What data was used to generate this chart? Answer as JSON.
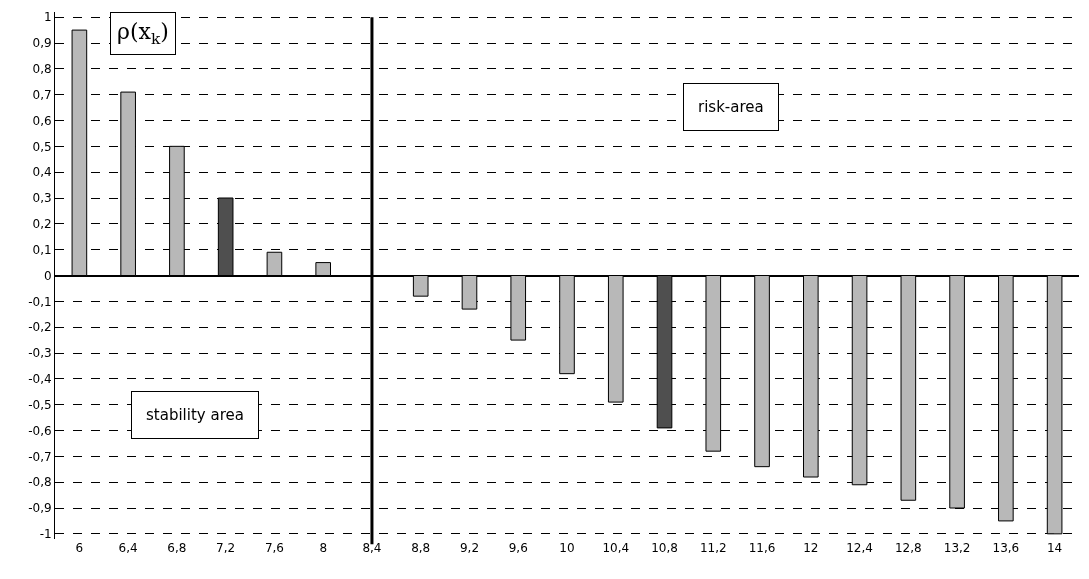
{
  "chart_data": {
    "type": "bar",
    "categories": [
      "6",
      "6,4",
      "6,8",
      "7,2",
      "7,6",
      "8",
      "8,4",
      "8,8",
      "9,2",
      "9,6",
      "10",
      "10,4",
      "10,8",
      "11,2",
      "11,6",
      "12",
      "12,4",
      "12,8",
      "13,2",
      "13,6",
      "14"
    ],
    "values": [
      0.95,
      0.71,
      0.5,
      0.3,
      0.09,
      0.05,
      null,
      -0.08,
      -0.13,
      -0.25,
      -0.38,
      -0.49,
      -0.59,
      -0.68,
      -0.74,
      -0.78,
      -0.81,
      -0.87,
      -0.9,
      -0.95,
      -1
    ],
    "colors": [
      "#b8b8b8",
      "#b8b8b8",
      "#b8b8b8",
      "#4f4f4f",
      "#b8b8b8",
      "#b8b8b8",
      "#b8b8b8",
      "#b8b8b8",
      "#b8b8b8",
      "#b8b8b8",
      "#b8b8b8",
      "#b8b8b8",
      "#4f4f4f",
      "#b8b8b8",
      "#b8b8b8",
      "#b8b8b8",
      "#b8b8b8",
      "#b8b8b8",
      "#b8b8b8",
      "#b8b8b8",
      "#b8b8b8"
    ],
    "ylim": [
      -1.02,
      1.02
    ],
    "yticks": [
      {
        "value": -1,
        "label": "-1"
      },
      {
        "value": -0.9,
        "label": "-0,9"
      },
      {
        "value": -0.8,
        "label": "-0,8"
      },
      {
        "value": -0.7,
        "label": "-0,7"
      },
      {
        "value": -0.6,
        "label": "-0,6"
      },
      {
        "value": -0.5,
        "label": "-0,5"
      },
      {
        "value": -0.4,
        "label": "-0,4"
      },
      {
        "value": -0.3,
        "label": "-0,3"
      },
      {
        "value": -0.2,
        "label": "-0,2"
      },
      {
        "value": -0.1,
        "label": "-0,1"
      },
      0,
      {
        "value": 0.1,
        "label": "0,1"
      },
      {
        "value": 0.2,
        "label": "0,2"
      },
      {
        "value": 0.3,
        "label": "0,3"
      },
      {
        "value": 0.4,
        "label": "0,4"
      },
      {
        "value": 0.5,
        "label": "0,5"
      },
      {
        "value": 0.6,
        "label": "0,6"
      },
      {
        "value": 0.7,
        "label": "0,7"
      },
      {
        "value": 0.8,
        "label": "0,8"
      },
      {
        "value": 0.9,
        "label": "0,9"
      },
      1
    ],
    "grid": "y",
    "ref_lines": [
      {
        "axis": "x",
        "value": "8,4",
        "color": "#000000"
      }
    ],
    "annotations": [
      "ρ(x$_{k}$)",
      "risk-area",
      "stability area"
    ]
  }
}
